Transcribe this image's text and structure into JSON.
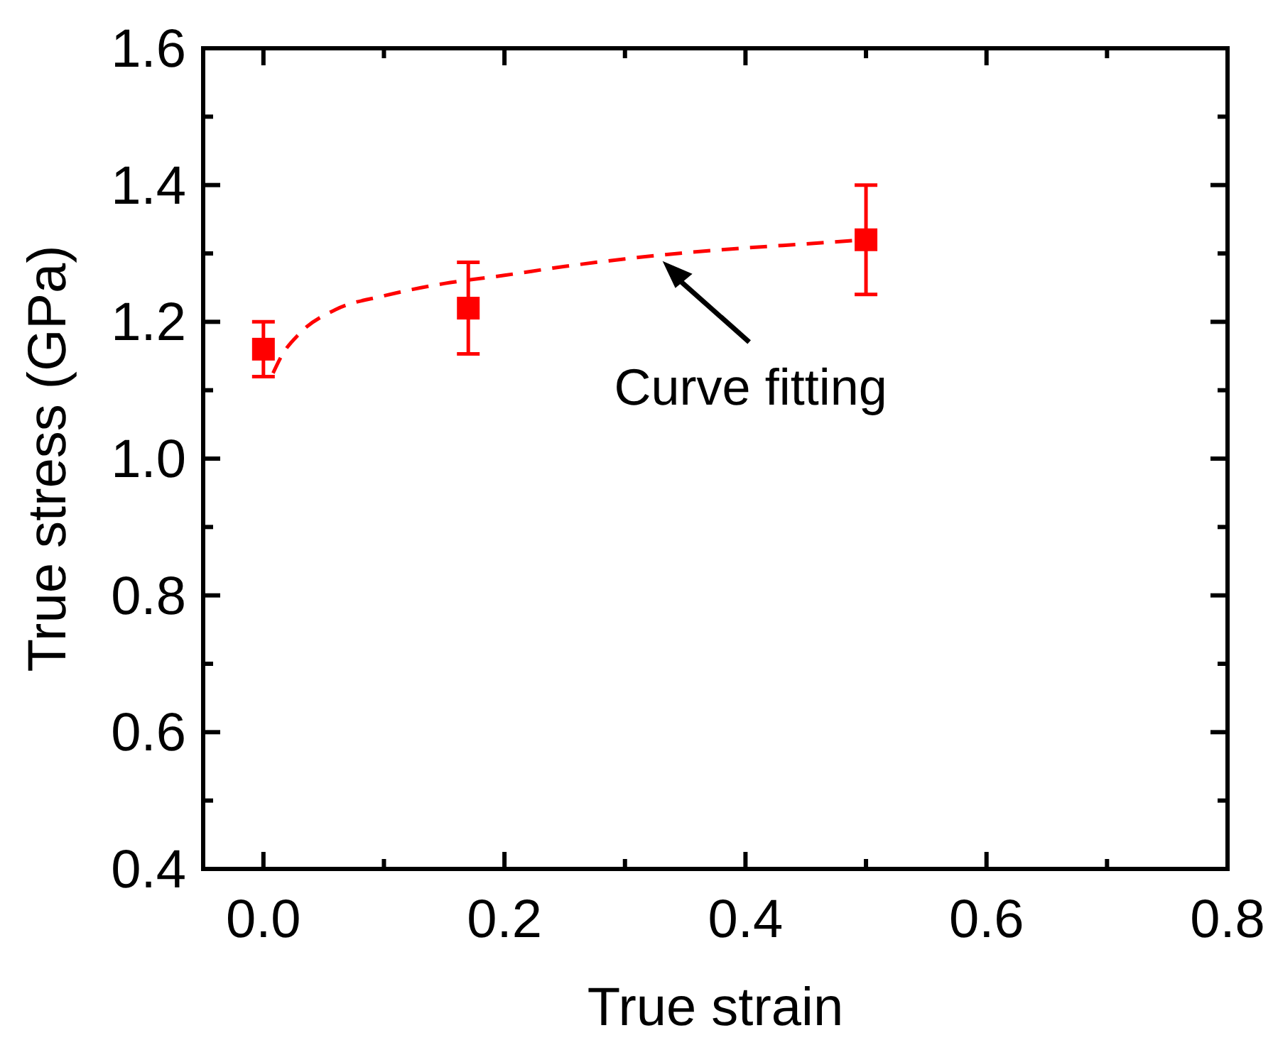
{
  "chart_data": {
    "type": "scatter",
    "xlabel": "True strain",
    "ylabel": "True stress (GPa)",
    "xlim": [
      -0.05,
      0.8
    ],
    "xticks": [
      {
        "value": 0,
        "label": "0.0"
      },
      {
        "value": 0.2,
        "label": "0.2"
      },
      {
        "value": 0.4,
        "label": "0.4"
      },
      {
        "value": 0.6,
        "label": "0.6"
      },
      {
        "value": 0.8,
        "label": "0.8"
      }
    ],
    "ylim": [
      0.4,
      1.6
    ],
    "yticks": [
      {
        "value": 0.4,
        "label": "0.4"
      },
      {
        "value": 0.6,
        "label": "0.6"
      },
      {
        "value": 0.8,
        "label": "0.8"
      },
      {
        "value": 1.0,
        "label": "1.0"
      },
      {
        "value": 1.2,
        "label": "1.2"
      },
      {
        "value": 1.4,
        "label": "1.4"
      },
      {
        "value": 1.6,
        "label": "1.6"
      }
    ],
    "grid": false,
    "series": [
      {
        "color": "#ff0000",
        "marker": "square",
        "x": [
          0,
          0.17,
          0.5
        ],
        "values": [
          1.16,
          1.22,
          1.32
        ],
        "errors": [
          0.04,
          0.067,
          [
            1.24,
            1.4
          ]
        ]
      },
      {
        "type": "line",
        "color": "#ff0000",
        "line_style": "dashed",
        "marker": "none",
        "x": [
          0.008,
          0.015,
          0.03,
          0.06,
          0.1,
          0.15,
          0.2,
          0.25,
          0.3,
          0.35,
          0.4,
          0.45,
          0.5
        ],
        "values": [
          1.125,
          1.15,
          1.183,
          1.218,
          1.238,
          1.256,
          1.268,
          1.281,
          1.292,
          1.301,
          1.308,
          1.314,
          1.32
        ]
      }
    ],
    "annotations": [
      {
        "text": "Curve fitting",
        "x": 0.33,
        "y": 1.295
      }
    ]
  }
}
